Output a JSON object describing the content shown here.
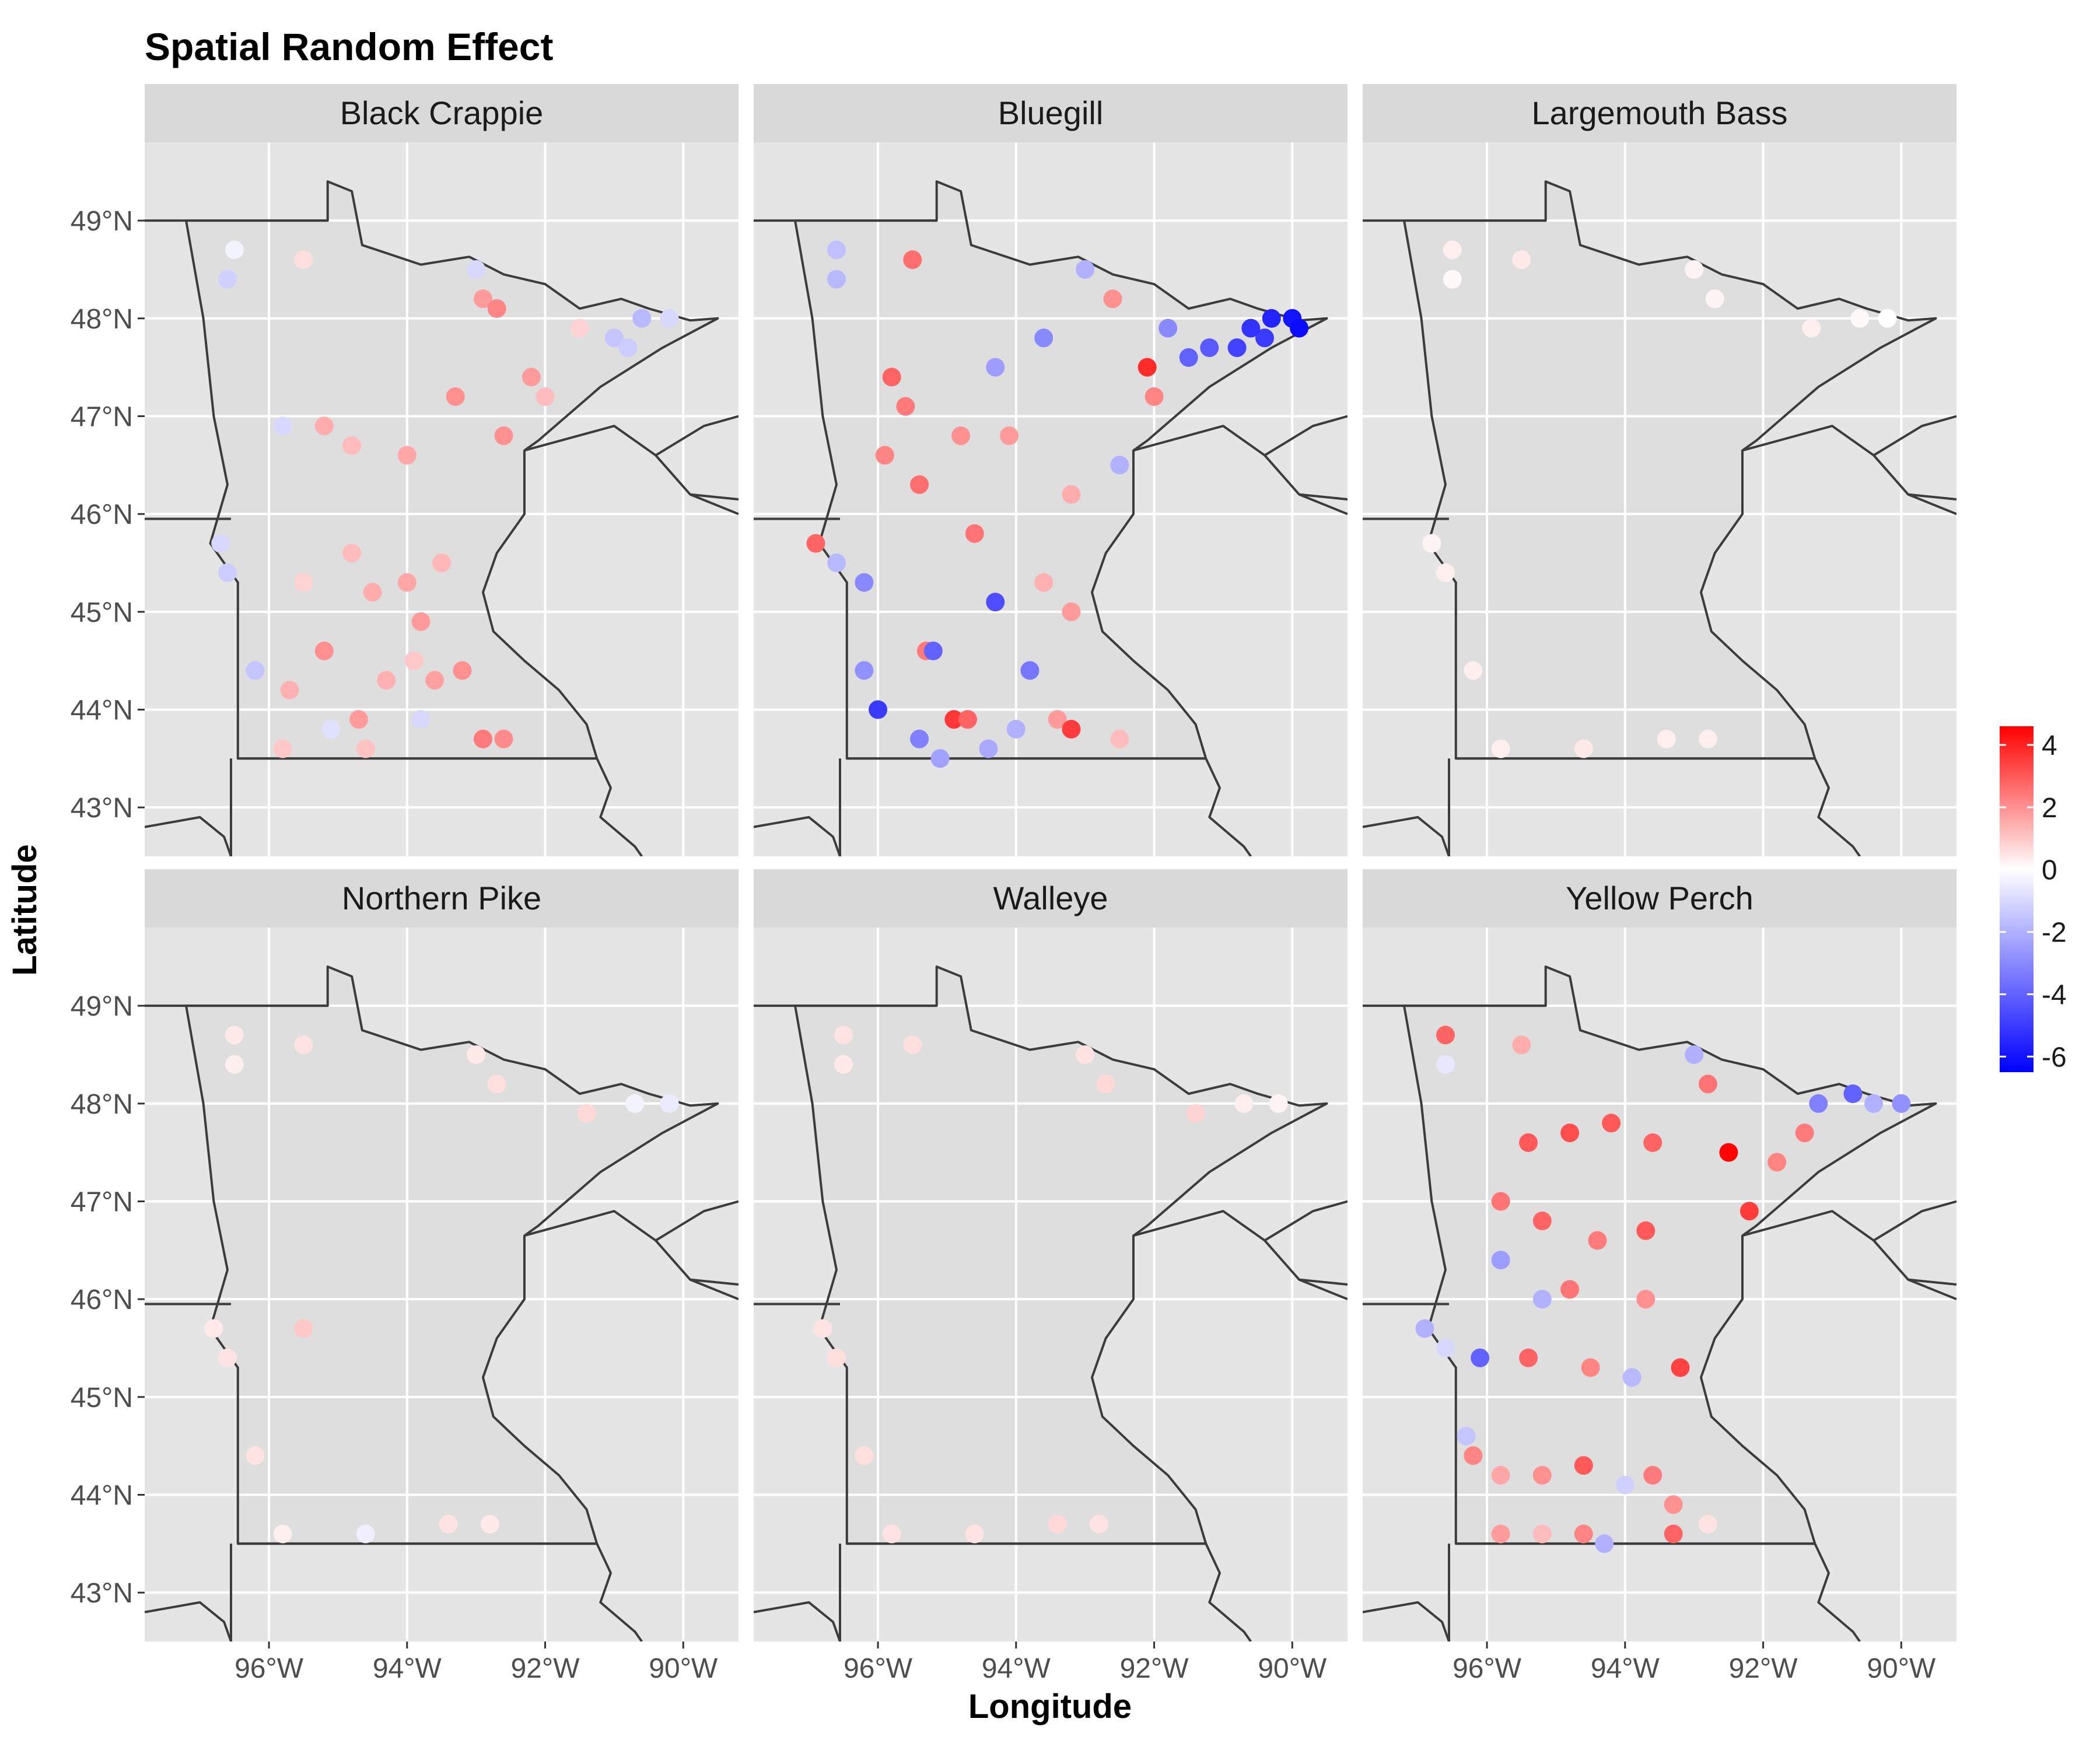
{
  "chart_data": {
    "type": "scatter",
    "title": "Spatial Random Effect",
    "xlabel": "Longitude",
    "ylabel": "Latitude",
    "xlim": [
      -97.8,
      -89.2
    ],
    "ylim": [
      42.5,
      49.8
    ],
    "x_ticks": [
      -96,
      -94,
      -92,
      -90
    ],
    "x_tick_labels": [
      "96°W",
      "94°W",
      "92°W",
      "90°W"
    ],
    "y_ticks": [
      43,
      44,
      45,
      46,
      47,
      48,
      49
    ],
    "y_tick_labels": [
      "43°N",
      "44°N",
      "45°N",
      "46°N",
      "47°N",
      "48°N",
      "49°N"
    ],
    "grid": true,
    "colorbar": {
      "title": "",
      "min": -6.5,
      "max": 4.6,
      "ticks": [
        4,
        2,
        0,
        -2,
        -4,
        -6
      ],
      "tick_labels": [
        "4",
        "2",
        "0",
        "-2",
        "-4",
        "-6"
      ],
      "low_color": "#0000ff",
      "mid_color": "#ffffff",
      "high_color": "#ff0000",
      "placement": "right"
    },
    "colors": {
      "panel_background": "#e5e5e5",
      "strip_background": "#d9d9d9",
      "grid": "#ffffff",
      "land": "#dedede",
      "border": "#3c3c3c"
    },
    "panels": [
      {
        "name": "Black Crappie",
        "points": [
          {
            "lon": -96.5,
            "lat": 48.7,
            "v": -0.3
          },
          {
            "lon": -96.6,
            "lat": 48.4,
            "v": -1.2
          },
          {
            "lon": -95.5,
            "lat": 48.6,
            "v": 0.6
          },
          {
            "lon": -92.9,
            "lat": 48.2,
            "v": 1.8
          },
          {
            "lon": -92.7,
            "lat": 48.1,
            "v": 2.2
          },
          {
            "lon": -93.0,
            "lat": 48.5,
            "v": -1.0
          },
          {
            "lon": -91.5,
            "lat": 47.9,
            "v": 0.8
          },
          {
            "lon": -91.0,
            "lat": 47.8,
            "v": -1.5
          },
          {
            "lon": -90.6,
            "lat": 48.0,
            "v": -1.8
          },
          {
            "lon": -90.2,
            "lat": 48.0,
            "v": -1.0
          },
          {
            "lon": -90.8,
            "lat": 47.7,
            "v": -1.3
          },
          {
            "lon": -92.2,
            "lat": 47.4,
            "v": 1.8
          },
          {
            "lon": -92.0,
            "lat": 47.2,
            "v": 1.2
          },
          {
            "lon": -93.3,
            "lat": 47.2,
            "v": 2.0
          },
          {
            "lon": -95.8,
            "lat": 46.9,
            "v": -1.0
          },
          {
            "lon": -95.2,
            "lat": 46.9,
            "v": 1.5
          },
          {
            "lon": -94.8,
            "lat": 46.7,
            "v": 1.2
          },
          {
            "lon": -94.0,
            "lat": 46.6,
            "v": 1.6
          },
          {
            "lon": -92.6,
            "lat": 46.8,
            "v": 2.0
          },
          {
            "lon": -94.8,
            "lat": 45.6,
            "v": 1.2
          },
          {
            "lon": -95.5,
            "lat": 45.3,
            "v": 0.8
          },
          {
            "lon": -94.5,
            "lat": 45.2,
            "v": 1.5
          },
          {
            "lon": -94.0,
            "lat": 45.3,
            "v": 1.6
          },
          {
            "lon": -93.5,
            "lat": 45.5,
            "v": 1.3
          },
          {
            "lon": -93.8,
            "lat": 44.9,
            "v": 1.8
          },
          {
            "lon": -96.7,
            "lat": 45.7,
            "v": -1.0
          },
          {
            "lon": -96.6,
            "lat": 45.4,
            "v": -1.3
          },
          {
            "lon": -96.2,
            "lat": 44.4,
            "v": -1.5
          },
          {
            "lon": -95.7,
            "lat": 44.2,
            "v": 1.4
          },
          {
            "lon": -95.2,
            "lat": 44.6,
            "v": 2.0
          },
          {
            "lon": -94.7,
            "lat": 43.9,
            "v": 1.8
          },
          {
            "lon": -94.3,
            "lat": 44.3,
            "v": 1.4
          },
          {
            "lon": -93.9,
            "lat": 44.5,
            "v": 1.0
          },
          {
            "lon": -93.6,
            "lat": 44.3,
            "v": 1.7
          },
          {
            "lon": -93.2,
            "lat": 44.4,
            "v": 2.0
          },
          {
            "lon": -92.9,
            "lat": 43.7,
            "v": 2.4
          },
          {
            "lon": -92.6,
            "lat": 43.7,
            "v": 2.1
          },
          {
            "lon": -95.8,
            "lat": 43.6,
            "v": 1.0
          },
          {
            "lon": -95.1,
            "lat": 43.8,
            "v": -0.8
          },
          {
            "lon": -94.6,
            "lat": 43.6,
            "v": 1.1
          },
          {
            "lon": -93.8,
            "lat": 43.9,
            "v": -1.0
          }
        ]
      },
      {
        "name": "Bluegill",
        "points": [
          {
            "lon": -96.6,
            "lat": 48.7,
            "v": -1.6
          },
          {
            "lon": -96.6,
            "lat": 48.4,
            "v": -1.8
          },
          {
            "lon": -95.5,
            "lat": 48.6,
            "v": 2.6
          },
          {
            "lon": -93.0,
            "lat": 48.5,
            "v": -2.0
          },
          {
            "lon": -92.6,
            "lat": 48.2,
            "v": 2.0
          },
          {
            "lon": -91.8,
            "lat": 47.9,
            "v": -3.0
          },
          {
            "lon": -91.2,
            "lat": 47.7,
            "v": -4.2
          },
          {
            "lon": -90.8,
            "lat": 47.7,
            "v": -4.8
          },
          {
            "lon": -90.4,
            "lat": 47.8,
            "v": -5.0
          },
          {
            "lon": -90.3,
            "lat": 48.0,
            "v": -5.6
          },
          {
            "lon": -90.0,
            "lat": 48.0,
            "v": -6.0
          },
          {
            "lon": -89.9,
            "lat": 47.9,
            "v": -6.2
          },
          {
            "lon": -90.6,
            "lat": 47.9,
            "v": -5.2
          },
          {
            "lon": -91.5,
            "lat": 47.6,
            "v": -4.0
          },
          {
            "lon": -92.1,
            "lat": 47.5,
            "v": 3.8
          },
          {
            "lon": -92.0,
            "lat": 47.2,
            "v": 2.2
          },
          {
            "lon": -93.6,
            "lat": 47.8,
            "v": -3.0
          },
          {
            "lon": -94.3,
            "lat": 47.5,
            "v": -2.5
          },
          {
            "lon": -95.8,
            "lat": 47.4,
            "v": 2.8
          },
          {
            "lon": -95.6,
            "lat": 47.1,
            "v": 2.4
          },
          {
            "lon": -95.9,
            "lat": 46.6,
            "v": 2.2
          },
          {
            "lon": -95.4,
            "lat": 46.3,
            "v": 2.6
          },
          {
            "lon": -94.8,
            "lat": 46.8,
            "v": 2.0
          },
          {
            "lon": -94.1,
            "lat": 46.8,
            "v": 1.8
          },
          {
            "lon": -93.2,
            "lat": 46.2,
            "v": 1.5
          },
          {
            "lon": -92.5,
            "lat": 46.5,
            "v": -2.0
          },
          {
            "lon": -94.6,
            "lat": 45.8,
            "v": 2.5
          },
          {
            "lon": -94.3,
            "lat": 45.1,
            "v": -4.5
          },
          {
            "lon": -93.6,
            "lat": 45.3,
            "v": 1.4
          },
          {
            "lon": -93.2,
            "lat": 45.0,
            "v": 1.8
          },
          {
            "lon": -96.9,
            "lat": 45.7,
            "v": 2.8
          },
          {
            "lon": -96.6,
            "lat": 45.5,
            "v": -1.8
          },
          {
            "lon": -96.2,
            "lat": 45.3,
            "v": -3.0
          },
          {
            "lon": -96.2,
            "lat": 44.4,
            "v": -2.8
          },
          {
            "lon": -96.0,
            "lat": 44.0,
            "v": -5.0
          },
          {
            "lon": -95.4,
            "lat": 43.7,
            "v": -3.2
          },
          {
            "lon": -95.3,
            "lat": 44.6,
            "v": 2.4
          },
          {
            "lon": -95.2,
            "lat": 44.6,
            "v": -4.0
          },
          {
            "lon": -94.9,
            "lat": 43.9,
            "v": 3.6
          },
          {
            "lon": -94.7,
            "lat": 43.9,
            "v": 2.8
          },
          {
            "lon": -94.0,
            "lat": 43.8,
            "v": -2.0
          },
          {
            "lon": -93.4,
            "lat": 43.9,
            "v": 1.8
          },
          {
            "lon": -93.2,
            "lat": 43.8,
            "v": 3.5
          },
          {
            "lon": -92.5,
            "lat": 43.7,
            "v": 1.2
          },
          {
            "lon": -93.8,
            "lat": 44.4,
            "v": -3.5
          },
          {
            "lon": -95.1,
            "lat": 43.5,
            "v": -2.4
          },
          {
            "lon": -94.4,
            "lat": 43.6,
            "v": -2.2
          }
        ]
      },
      {
        "name": "Largemouth Bass",
        "points": [
          {
            "lon": -96.5,
            "lat": 48.7,
            "v": 0.3
          },
          {
            "lon": -96.5,
            "lat": 48.4,
            "v": 0.1
          },
          {
            "lon": -95.5,
            "lat": 48.6,
            "v": 0.4
          },
          {
            "lon": -93.0,
            "lat": 48.5,
            "v": 0.2
          },
          {
            "lon": -92.7,
            "lat": 48.2,
            "v": 0.2
          },
          {
            "lon": -91.3,
            "lat": 47.9,
            "v": 0.3
          },
          {
            "lon": -90.6,
            "lat": 48.0,
            "v": 0.1
          },
          {
            "lon": -90.2,
            "lat": 48.0,
            "v": 0.0
          },
          {
            "lon": -96.8,
            "lat": 45.7,
            "v": 0.2
          },
          {
            "lon": -96.6,
            "lat": 45.4,
            "v": 0.3
          },
          {
            "lon": -96.2,
            "lat": 44.4,
            "v": 0.3
          },
          {
            "lon": -95.8,
            "lat": 43.6,
            "v": 0.3
          },
          {
            "lon": -94.6,
            "lat": 43.6,
            "v": 0.4
          },
          {
            "lon": -93.4,
            "lat": 43.7,
            "v": 0.3
          },
          {
            "lon": -92.8,
            "lat": 43.7,
            "v": 0.3
          }
        ]
      },
      {
        "name": "Northern Pike",
        "points": [
          {
            "lon": -96.5,
            "lat": 48.7,
            "v": 0.4
          },
          {
            "lon": -96.5,
            "lat": 48.4,
            "v": 0.3
          },
          {
            "lon": -95.5,
            "lat": 48.6,
            "v": 0.5
          },
          {
            "lon": -93.0,
            "lat": 48.5,
            "v": 0.4
          },
          {
            "lon": -92.7,
            "lat": 48.2,
            "v": 0.6
          },
          {
            "lon": -91.4,
            "lat": 47.9,
            "v": 0.7
          },
          {
            "lon": -90.7,
            "lat": 48.0,
            "v": -0.3
          },
          {
            "lon": -90.2,
            "lat": 48.0,
            "v": -0.5
          },
          {
            "lon": -96.8,
            "lat": 45.7,
            "v": 0.4
          },
          {
            "lon": -96.6,
            "lat": 45.4,
            "v": 0.5
          },
          {
            "lon": -95.5,
            "lat": 45.7,
            "v": 1.0
          },
          {
            "lon": -96.2,
            "lat": 44.4,
            "v": 0.5
          },
          {
            "lon": -95.8,
            "lat": 43.6,
            "v": 0.3
          },
          {
            "lon": -94.6,
            "lat": 43.6,
            "v": -0.4
          },
          {
            "lon": -93.4,
            "lat": 43.7,
            "v": 0.5
          },
          {
            "lon": -92.8,
            "lat": 43.7,
            "v": 0.4
          }
        ]
      },
      {
        "name": "Walleye",
        "points": [
          {
            "lon": -96.5,
            "lat": 48.7,
            "v": 0.5
          },
          {
            "lon": -96.5,
            "lat": 48.4,
            "v": 0.4
          },
          {
            "lon": -95.5,
            "lat": 48.6,
            "v": 0.6
          },
          {
            "lon": -93.0,
            "lat": 48.5,
            "v": 0.5
          },
          {
            "lon": -92.7,
            "lat": 48.2,
            "v": 0.7
          },
          {
            "lon": -91.4,
            "lat": 47.9,
            "v": 0.8
          },
          {
            "lon": -90.7,
            "lat": 48.0,
            "v": 0.3
          },
          {
            "lon": -90.2,
            "lat": 48.0,
            "v": 0.2
          },
          {
            "lon": -96.8,
            "lat": 45.7,
            "v": 0.5
          },
          {
            "lon": -96.6,
            "lat": 45.4,
            "v": 0.6
          },
          {
            "lon": -96.2,
            "lat": 44.4,
            "v": 0.6
          },
          {
            "lon": -95.8,
            "lat": 43.6,
            "v": 0.5
          },
          {
            "lon": -94.6,
            "lat": 43.6,
            "v": 0.5
          },
          {
            "lon": -93.4,
            "lat": 43.7,
            "v": 0.7
          },
          {
            "lon": -92.8,
            "lat": 43.7,
            "v": 0.5
          }
        ]
      },
      {
        "name": "Yellow Perch",
        "points": [
          {
            "lon": -96.6,
            "lat": 48.7,
            "v": 2.8
          },
          {
            "lon": -96.6,
            "lat": 48.4,
            "v": -0.6
          },
          {
            "lon": -95.5,
            "lat": 48.6,
            "v": 1.5
          },
          {
            "lon": -93.0,
            "lat": 48.5,
            "v": -2.0
          },
          {
            "lon": -92.8,
            "lat": 48.2,
            "v": 2.5
          },
          {
            "lon": -92.5,
            "lat": 47.5,
            "v": 4.5
          },
          {
            "lon": -92.2,
            "lat": 46.9,
            "v": 3.5
          },
          {
            "lon": -91.2,
            "lat": 48.0,
            "v": -3.2
          },
          {
            "lon": -90.7,
            "lat": 48.1,
            "v": -4.0
          },
          {
            "lon": -90.4,
            "lat": 48.0,
            "v": -2.0
          },
          {
            "lon": -90.0,
            "lat": 48.0,
            "v": -2.8
          },
          {
            "lon": -91.4,
            "lat": 47.7,
            "v": 2.4
          },
          {
            "lon": -91.8,
            "lat": 47.4,
            "v": 2.2
          },
          {
            "lon": -95.4,
            "lat": 47.6,
            "v": 3.0
          },
          {
            "lon": -94.8,
            "lat": 47.7,
            "v": 3.2
          },
          {
            "lon": -94.2,
            "lat": 47.8,
            "v": 3.0
          },
          {
            "lon": -93.6,
            "lat": 47.6,
            "v": 2.8
          },
          {
            "lon": -95.8,
            "lat": 47.0,
            "v": 2.5
          },
          {
            "lon": -95.2,
            "lat": 46.8,
            "v": 2.8
          },
          {
            "lon": -94.4,
            "lat": 46.6,
            "v": 2.4
          },
          {
            "lon": -93.7,
            "lat": 46.7,
            "v": 3.0
          },
          {
            "lon": -95.8,
            "lat": 46.4,
            "v": -2.5
          },
          {
            "lon": -95.2,
            "lat": 46.0,
            "v": -2.0
          },
          {
            "lon": -94.8,
            "lat": 46.1,
            "v": 2.5
          },
          {
            "lon": -93.7,
            "lat": 46.0,
            "v": 2.0
          },
          {
            "lon": -93.2,
            "lat": 45.3,
            "v": 3.4
          },
          {
            "lon": -94.5,
            "lat": 45.3,
            "v": 2.2
          },
          {
            "lon": -95.4,
            "lat": 45.4,
            "v": 2.8
          },
          {
            "lon": -93.9,
            "lat": 45.2,
            "v": -1.8
          },
          {
            "lon": -96.9,
            "lat": 45.7,
            "v": -2.0
          },
          {
            "lon": -96.6,
            "lat": 45.5,
            "v": -1.0
          },
          {
            "lon": -96.1,
            "lat": 45.4,
            "v": -4.0
          },
          {
            "lon": -96.3,
            "lat": 44.6,
            "v": -1.5
          },
          {
            "lon": -96.2,
            "lat": 44.4,
            "v": 2.2
          },
          {
            "lon": -95.8,
            "lat": 44.2,
            "v": 1.6
          },
          {
            "lon": -95.2,
            "lat": 44.2,
            "v": 2.0
          },
          {
            "lon": -94.6,
            "lat": 44.3,
            "v": 3.0
          },
          {
            "lon": -94.0,
            "lat": 44.1,
            "v": -1.2
          },
          {
            "lon": -93.6,
            "lat": 44.2,
            "v": 2.4
          },
          {
            "lon": -93.3,
            "lat": 43.9,
            "v": 2.0
          },
          {
            "lon": -93.3,
            "lat": 43.6,
            "v": 2.8
          },
          {
            "lon": -92.8,
            "lat": 43.7,
            "v": 0.5
          },
          {
            "lon": -95.8,
            "lat": 43.6,
            "v": 1.8
          },
          {
            "lon": -95.2,
            "lat": 43.6,
            "v": 1.2
          },
          {
            "lon": -94.6,
            "lat": 43.6,
            "v": 2.2
          },
          {
            "lon": -94.3,
            "lat": 43.5,
            "v": -2.0
          }
        ]
      }
    ]
  }
}
